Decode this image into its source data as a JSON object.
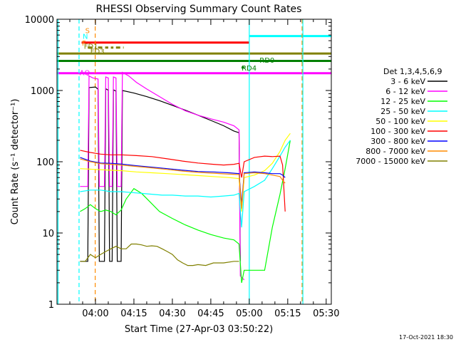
{
  "chart_data": {
    "type": "line",
    "title": "RHESSI Observing Summary Count Rates",
    "xlabel": "Start Time (27-Apr-03 03:50:22)",
    "ylabel": "Count Rate (s⁻¹ detector⁻¹)",
    "yscale": "log",
    "ylim": [
      1,
      10000
    ],
    "xlim_minutes": [
      225,
      332
    ],
    "x_ticks": [
      {
        "label": "04:00",
        "minute": 240
      },
      {
        "label": "04:15",
        "minute": 255
      },
      {
        "label": "04:30",
        "minute": 270
      },
      {
        "label": "04:45",
        "minute": 285
      },
      {
        "label": "05:00",
        "minute": 300
      },
      {
        "label": "05:15",
        "minute": 315
      },
      {
        "label": "05:30",
        "minute": 330
      }
    ],
    "y_ticks": [
      {
        "label": "1",
        "value": 1
      },
      {
        "label": "10",
        "value": 10
      },
      {
        "label": "100",
        "value": 100
      },
      {
        "label": "1000",
        "value": 1000
      },
      {
        "label": "10000",
        "value": 10000
      }
    ],
    "legend": {
      "title": "Det 1,3,4,5,6,9",
      "placement": "right"
    },
    "series": [
      {
        "name": "3 - 6 keV",
        "color": "#000000",
        "points": [
          [
            234,
            4
          ],
          [
            237,
            4
          ],
          [
            237.5,
            1100
          ],
          [
            240,
            1120
          ],
          [
            241,
            1040
          ],
          [
            241.5,
            4
          ],
          [
            243.5,
            4
          ],
          [
            244,
            1060
          ],
          [
            245,
            1010
          ],
          [
            245.5,
            4
          ],
          [
            246.5,
            4
          ],
          [
            247,
            1020
          ],
          [
            248,
            980
          ],
          [
            248.5,
            4
          ],
          [
            250,
            4
          ],
          [
            250.5,
            1000
          ],
          [
            255,
            920
          ],
          [
            260,
            820
          ],
          [
            265,
            720
          ],
          [
            270,
            620
          ],
          [
            275,
            530
          ],
          [
            280,
            450
          ],
          [
            285,
            380
          ],
          [
            290,
            320
          ],
          [
            294,
            270
          ],
          [
            296,
            255
          ],
          [
            296.5,
            4
          ]
        ]
      },
      {
        "name": "6 - 12 keV",
        "color": "#ff00ff",
        "points": [
          [
            234,
            45
          ],
          [
            237,
            45
          ],
          [
            237.5,
            1600
          ],
          [
            239,
            1500
          ],
          [
            241,
            1450
          ],
          [
            241.5,
            45
          ],
          [
            243.5,
            45
          ],
          [
            244,
            1550
          ],
          [
            245,
            1500
          ],
          [
            245.5,
            45
          ],
          [
            246.5,
            45
          ],
          [
            247,
            1550
          ],
          [
            248,
            1500
          ],
          [
            248.5,
            45
          ],
          [
            250,
            45
          ],
          [
            250.5,
            1800
          ],
          [
            253,
            1600
          ],
          [
            256,
            1300
          ],
          [
            260,
            1050
          ],
          [
            265,
            820
          ],
          [
            270,
            640
          ],
          [
            275,
            520
          ],
          [
            280,
            450
          ],
          [
            285,
            400
          ],
          [
            290,
            360
          ],
          [
            294,
            320
          ],
          [
            296,
            280
          ],
          [
            296.5,
            2.5
          ],
          [
            298,
            2.2
          ]
        ]
      },
      {
        "name": "12 - 25 keV",
        "color": "#00ff00",
        "points": [
          [
            234,
            20
          ],
          [
            236,
            22
          ],
          [
            238,
            25
          ],
          [
            240,
            22
          ],
          [
            242,
            20
          ],
          [
            244,
            21
          ],
          [
            246,
            20
          ],
          [
            248,
            18
          ],
          [
            250,
            21
          ],
          [
            252,
            30
          ],
          [
            255,
            42
          ],
          [
            258,
            36
          ],
          [
            261,
            28
          ],
          [
            265,
            20
          ],
          [
            270,
            16
          ],
          [
            275,
            13
          ],
          [
            280,
            11
          ],
          [
            285,
            9.5
          ],
          [
            290,
            8.5
          ],
          [
            294,
            8
          ],
          [
            296,
            7
          ],
          [
            297,
            2
          ],
          [
            298,
            3
          ],
          [
            303,
            3
          ],
          [
            306,
            3
          ],
          [
            309,
            12
          ],
          [
            312,
            35
          ],
          [
            314,
            80
          ],
          [
            316,
            200
          ]
        ]
      },
      {
        "name": "25 - 50 keV",
        "color": "#00ffff",
        "points": [
          [
            234,
            38
          ],
          [
            238,
            40
          ],
          [
            242,
            40
          ],
          [
            246,
            38
          ],
          [
            250,
            38
          ],
          [
            254,
            37
          ],
          [
            258,
            36
          ],
          [
            262,
            35
          ],
          [
            266,
            34
          ],
          [
            270,
            34
          ],
          [
            275,
            33
          ],
          [
            280,
            33
          ],
          [
            285,
            32
          ],
          [
            290,
            33
          ],
          [
            294,
            34
          ],
          [
            296,
            36
          ],
          [
            297,
            12
          ],
          [
            298,
            38
          ],
          [
            302,
            45
          ],
          [
            306,
            55
          ],
          [
            309,
            80
          ],
          [
            312,
            120
          ],
          [
            314,
            160
          ],
          [
            316,
            200
          ]
        ]
      },
      {
        "name": "50 - 100 keV",
        "color": "#ffff00",
        "points": [
          [
            234,
            80
          ],
          [
            240,
            78
          ],
          [
            246,
            76
          ],
          [
            250,
            75
          ],
          [
            256,
            72
          ],
          [
            262,
            70
          ],
          [
            268,
            68
          ],
          [
            274,
            66
          ],
          [
            280,
            64
          ],
          [
            286,
            62
          ],
          [
            292,
            60
          ],
          [
            296,
            58
          ],
          [
            297,
            20
          ],
          [
            298,
            60
          ],
          [
            302,
            65
          ],
          [
            306,
            75
          ],
          [
            309,
            95
          ],
          [
            312,
            140
          ],
          [
            314,
            200
          ],
          [
            316,
            250
          ]
        ]
      },
      {
        "name": "100 - 300 keV",
        "color": "#ff0000",
        "points": [
          [
            234,
            145
          ],
          [
            238,
            135
          ],
          [
            242,
            128
          ],
          [
            246,
            125
          ],
          [
            250,
            125
          ],
          [
            256,
            122
          ],
          [
            262,
            118
          ],
          [
            268,
            110
          ],
          [
            274,
            102
          ],
          [
            280,
            96
          ],
          [
            286,
            92
          ],
          [
            290,
            90
          ],
          [
            294,
            92
          ],
          [
            296,
            95
          ],
          [
            297,
            60
          ],
          [
            298,
            100
          ],
          [
            302,
            115
          ],
          [
            306,
            120
          ],
          [
            309,
            118
          ],
          [
            312,
            120
          ],
          [
            313,
            90
          ],
          [
            314,
            20
          ]
        ]
      },
      {
        "name": "300 - 800 keV",
        "color": "#0000ff",
        "points": [
          [
            234,
            115
          ],
          [
            238,
            102
          ],
          [
            242,
            96
          ],
          [
            246,
            95
          ],
          [
            250,
            93
          ],
          [
            256,
            88
          ],
          [
            262,
            84
          ],
          [
            268,
            80
          ],
          [
            274,
            76
          ],
          [
            280,
            73
          ],
          [
            286,
            72
          ],
          [
            292,
            70
          ],
          [
            296,
            68
          ],
          [
            297,
            25
          ],
          [
            298,
            70
          ],
          [
            302,
            72
          ],
          [
            306,
            70
          ],
          [
            309,
            68
          ],
          [
            312,
            68
          ],
          [
            313,
            65
          ],
          [
            314,
            60
          ]
        ]
      },
      {
        "name": "800 - 7000 keV",
        "color": "#ff8c00",
        "points": [
          [
            234,
            110
          ],
          [
            238,
            100
          ],
          [
            242,
            94
          ],
          [
            246,
            92
          ],
          [
            250,
            90
          ],
          [
            256,
            86
          ],
          [
            262,
            82
          ],
          [
            268,
            78
          ],
          [
            274,
            74
          ],
          [
            280,
            71
          ],
          [
            286,
            69
          ],
          [
            292,
            67
          ],
          [
            296,
            66
          ],
          [
            297,
            22
          ],
          [
            298,
            68
          ],
          [
            302,
            70
          ],
          [
            306,
            68
          ],
          [
            309,
            65
          ],
          [
            312,
            62
          ],
          [
            313,
            55
          ],
          [
            314,
            50
          ]
        ]
      },
      {
        "name": "7000 - 15000 keV",
        "color": "#808000",
        "points": [
          [
            234,
            4
          ],
          [
            236,
            4
          ],
          [
            238,
            5
          ],
          [
            240,
            4.5
          ],
          [
            242,
            5
          ],
          [
            244,
            5.5
          ],
          [
            246,
            6
          ],
          [
            248,
            6.5
          ],
          [
            250,
            6
          ],
          [
            252,
            6
          ],
          [
            254,
            7
          ],
          [
            256,
            7
          ],
          [
            258,
            6.8
          ],
          [
            260,
            6.5
          ],
          [
            262,
            6.6
          ],
          [
            264,
            6.5
          ],
          [
            266,
            6
          ],
          [
            268,
            5.5
          ],
          [
            270,
            5
          ],
          [
            272,
            4.2
          ],
          [
            274,
            3.8
          ],
          [
            276,
            3.5
          ],
          [
            278,
            3.5
          ],
          [
            280,
            3.6
          ],
          [
            283,
            3.5
          ],
          [
            286,
            3.8
          ],
          [
            290,
            3.8
          ],
          [
            294,
            4
          ],
          [
            296,
            4
          ]
        ]
      }
    ],
    "vertical_lines": [
      {
        "minute": 225.4,
        "style": "solid",
        "color": "#00ffff"
      },
      {
        "minute": 239.9,
        "style": "dashed",
        "color": "#ff8c00"
      },
      {
        "minute": 233.6,
        "style": "dashed",
        "color": "#00ffff"
      },
      {
        "minute": 300.0,
        "style": "solid",
        "color": "#00ffff"
      },
      {
        "minute": 320.6,
        "style": "dashed",
        "color": "#ff8c00"
      },
      {
        "minute": 320.9,
        "style": "solid",
        "color": "#00ffff"
      }
    ],
    "annotations": [
      {
        "label": "S",
        "color": "#ff8c00",
        "y": 7000,
        "x_from": 225,
        "x_to": 235,
        "text_at": 236
      },
      {
        "label": "N",
        "color": "#00ffff",
        "y": 5800,
        "x_from": 225,
        "x_to": 234.5,
        "text_at": 235
      },
      {
        "label": "F",
        "color": "#ff8c00",
        "y": 4700,
        "text_at": 234.7
      },
      {
        "label": "FD1",
        "color": "#808000",
        "y": 4200,
        "text_at": 235.5
      },
      {
        "label": "FD3",
        "color": "#808000",
        "y": 3600,
        "text_at": 238
      },
      {
        "label": "RD0",
        "color": "#008000",
        "y": 2700,
        "text_at": 304
      },
      {
        "label": "RD4",
        "color": "#008000",
        "y": 2100,
        "text_at": 297
      },
      {
        "label": "AQ",
        "color": "#ff00ff",
        "y": 1800,
        "text_at": 233.8
      }
    ],
    "horizontal_bars": [
      {
        "color": "#ff0000",
        "y": 4700,
        "segments": [
          [
            234.6,
            300
          ]
        ]
      },
      {
        "color": "#00ffff",
        "y": 5800,
        "segments": [
          [
            300,
            332
          ]
        ]
      },
      {
        "color": "#808000",
        "y": 4000,
        "segments": [
          [
            237,
            240
          ],
          [
            241,
            245
          ],
          [
            246,
            247
          ],
          [
            248,
            251
          ]
        ],
        "dashed": true
      },
      {
        "color": "#808000",
        "y": 3300,
        "segments": [
          [
            225,
            332
          ]
        ]
      },
      {
        "color": "#008000",
        "y": 2600,
        "segments": [
          [
            225,
            332
          ]
        ]
      },
      {
        "color": "#008000",
        "y": 2100,
        "segments": [
          [
            297,
            298
          ]
        ]
      },
      {
        "color": "#ff00ff",
        "y": 1750,
        "segments": [
          [
            225,
            332
          ]
        ]
      }
    ],
    "footer_date": "17-Oct-2021 18:30"
  }
}
